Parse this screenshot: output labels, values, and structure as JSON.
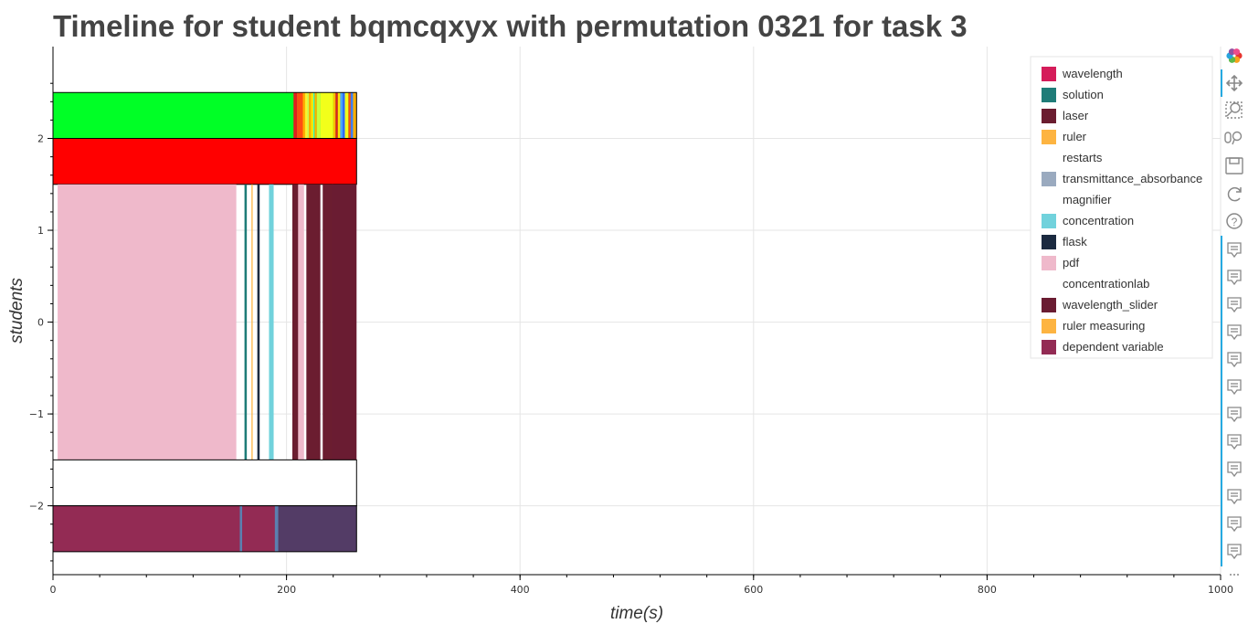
{
  "chart_data": {
    "type": "timeline",
    "title": "Timeline for student bqmcqxyx with permutation 0321 for task 3",
    "xlabel": "time(s)",
    "ylabel": "students",
    "xlim": [
      0,
      1000
    ],
    "ylim": [
      -2.75,
      3.0
    ],
    "x_ticks": [
      0,
      200,
      400,
      600,
      800,
      1000
    ],
    "y_ticks": [
      -2,
      -1,
      0,
      1,
      2
    ],
    "grid": true,
    "legend_position": "top-right",
    "legend": [
      {
        "label": "wavelength",
        "color": "#d51c5a"
      },
      {
        "label": "solution",
        "color": "#1f7c78"
      },
      {
        "label": "laser",
        "color": "#6b1d30"
      },
      {
        "label": "ruler",
        "color": "#fdb441"
      },
      {
        "label": "restarts",
        "color": ""
      },
      {
        "label": "transmittance_absorbance",
        "color": "#9aaabf"
      },
      {
        "label": "magnifier",
        "color": ""
      },
      {
        "label": "concentration",
        "color": "#71d2dc"
      },
      {
        "label": "flask",
        "color": "#1b2a40"
      },
      {
        "label": "pdf",
        "color": "#efb9cb"
      },
      {
        "label": "concentrationlab",
        "color": ""
      },
      {
        "label": "wavelength_slider",
        "color": "#6a1c32"
      },
      {
        "label": "ruler measuring",
        "color": "#fdb441"
      },
      {
        "label": "dependent variable",
        "color": "#932b54"
      }
    ],
    "rows": [
      {
        "y0": 2.0,
        "y1": 2.5,
        "base": "#00ff26",
        "outline": true,
        "segments": [
          {
            "start": 206,
            "end": 209,
            "color": "#e0201e"
          },
          {
            "start": 209,
            "end": 214,
            "color": "#ff4d12"
          },
          {
            "start": 214,
            "end": 216,
            "color": "#ffae00"
          },
          {
            "start": 216,
            "end": 218,
            "color": "#fff12e"
          },
          {
            "start": 218,
            "end": 219,
            "color": "#d8ff60"
          },
          {
            "start": 219,
            "end": 221,
            "color": "#ffae00"
          },
          {
            "start": 221,
            "end": 223,
            "color": "#ffe600"
          },
          {
            "start": 223,
            "end": 224,
            "color": "#26ffd0"
          },
          {
            "start": 224,
            "end": 226,
            "color": "#ffae00"
          },
          {
            "start": 226,
            "end": 229,
            "color": "#c8ff40"
          },
          {
            "start": 229,
            "end": 240,
            "color": "#f2ff1a"
          },
          {
            "start": 240,
            "end": 242,
            "color": "#ffbf00"
          },
          {
            "start": 242,
            "end": 244,
            "color": "#e0201e"
          },
          {
            "start": 244,
            "end": 246,
            "color": "#ffe600"
          },
          {
            "start": 246,
            "end": 248,
            "color": "#4da6ff"
          },
          {
            "start": 248,
            "end": 250,
            "color": "#2f6bff"
          },
          {
            "start": 250,
            "end": 253,
            "color": "#f2ff1a"
          },
          {
            "start": 253,
            "end": 255,
            "color": "#ff4d12"
          },
          {
            "start": 255,
            "end": 257,
            "color": "#3d7dff"
          },
          {
            "start": 257,
            "end": 260,
            "color": "#ffae00"
          }
        ]
      },
      {
        "y0": 1.5,
        "y1": 2.0,
        "base": "#ff0000",
        "outline": true,
        "segments": []
      },
      {
        "y0": -1.5,
        "y1": 1.5,
        "base": "",
        "outline": false,
        "segments": [
          {
            "start": 4,
            "end": 157,
            "color": "#efb9cb"
          },
          {
            "start": 164,
            "end": 166,
            "color": "#1f7c78"
          },
          {
            "start": 170,
            "end": 171,
            "color": "#fdb441"
          },
          {
            "start": 175,
            "end": 177,
            "color": "#1b2a40"
          },
          {
            "start": 185,
            "end": 189,
            "color": "#71d2dc"
          },
          {
            "start": 205,
            "end": 210,
            "color": "#6b1d30"
          },
          {
            "start": 210,
            "end": 215,
            "color": "#efb9cb"
          },
          {
            "start": 217,
            "end": 229,
            "color": "#6b1d30"
          },
          {
            "start": 231,
            "end": 240,
            "color": "#6b1d30"
          },
          {
            "start": 239,
            "end": 260,
            "color": "#6a1c32"
          }
        ]
      },
      {
        "y0": -2.0,
        "y1": -1.5,
        "base": "#ffffff",
        "outline": true,
        "segments": []
      },
      {
        "y0": -2.5,
        "y1": -2.0,
        "base": "#932b54",
        "outline": true,
        "segments": [
          {
            "start": 160,
            "end": 162,
            "color": "#5a80b0"
          },
          {
            "start": 190,
            "end": 193,
            "color": "#5a80b0"
          },
          {
            "start": 193,
            "end": 260,
            "color": "#533c66"
          }
        ]
      }
    ],
    "outline_x_range": [
      0,
      260
    ]
  },
  "toolbar": {
    "items": [
      {
        "name": "bokeh-logo-icon"
      },
      {
        "name": "pan-icon"
      },
      {
        "name": "box-zoom-icon"
      },
      {
        "name": "wheel-zoom-icon"
      },
      {
        "name": "save-icon"
      },
      {
        "name": "reset-icon"
      },
      {
        "name": "help-icon"
      }
    ],
    "hover_count": 12,
    "accent": "#26aae1"
  }
}
